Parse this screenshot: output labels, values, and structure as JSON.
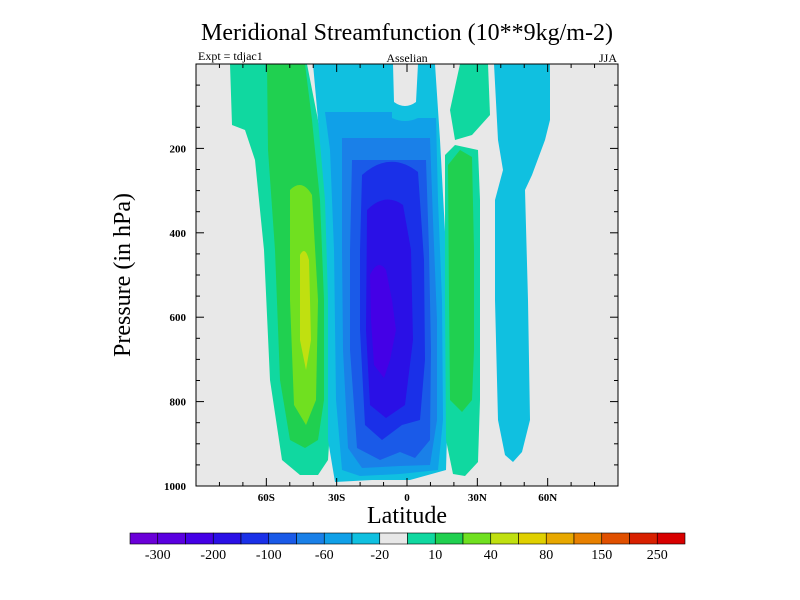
{
  "chart_data": {
    "type": "contour",
    "title": "Meridional Streamfunction (10**9kg/m-2)",
    "subtitle_left": "Expt = tdjac1",
    "subtitle_center": "Asselian",
    "subtitle_right": "JJA",
    "xlabel": "Latitude",
    "ylabel": "Pressure (in hPa)",
    "xlim": [
      -90,
      90
    ],
    "ylim": [
      1000,
      0
    ],
    "x_ticks": [
      {
        "value": -60,
        "label": "60S"
      },
      {
        "value": -30,
        "label": "30S"
      },
      {
        "value": 0,
        "label": "0"
      },
      {
        "value": 30,
        "label": "30N"
      },
      {
        "value": 60,
        "label": "60N"
      }
    ],
    "y_ticks": [
      {
        "value": 200,
        "label": "200"
      },
      {
        "value": 400,
        "label": "400"
      },
      {
        "value": 600,
        "label": "600"
      },
      {
        "value": 800,
        "label": "800"
      },
      {
        "value": 1000,
        "label": "1000"
      }
    ],
    "colorbar": {
      "colors": [
        "#6a00d8",
        "#5a00e0",
        "#4400e6",
        "#2a10e6",
        "#1a30e8",
        "#1a5ae8",
        "#1a80e8",
        "#10a0e8",
        "#10c0e0",
        "#e8e8e8",
        "#10d8a0",
        "#20d050",
        "#70e020",
        "#c0e010",
        "#e0d000",
        "#e8a800",
        "#e88000",
        "#e05000",
        "#d82000",
        "#d80000"
      ],
      "labels": [
        "-300",
        "-200",
        "-100",
        "-60",
        "-20",
        "10",
        "40",
        "80",
        "150",
        "250"
      ]
    }
  }
}
